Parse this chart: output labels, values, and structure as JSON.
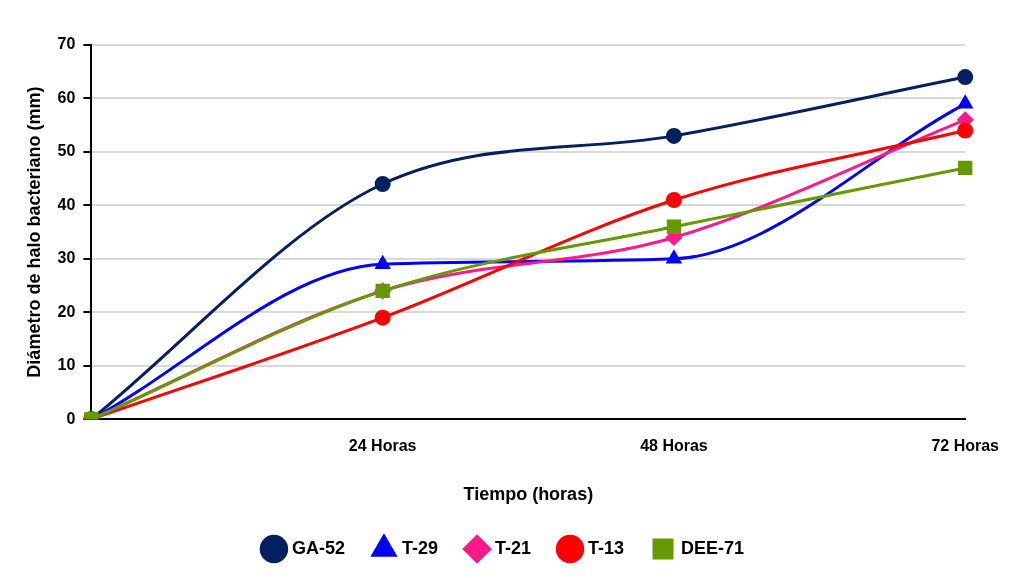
{
  "chart_data": {
    "type": "line",
    "xlabel": "Tiempo (horas)",
    "ylabel": "Diámetro de halo bacteriano (mm)",
    "categories": [
      null,
      "24 Horas",
      "48 Horas",
      "72 Horas"
    ],
    "series": [
      {
        "name": "GA-52",
        "color": "#002060",
        "marker": "circle",
        "values": [
          0,
          44,
          53,
          64
        ]
      },
      {
        "name": "T-29",
        "color": "#0000ff",
        "marker": "triangle",
        "values": [
          0,
          29,
          30,
          59
        ]
      },
      {
        "name": "T-21",
        "color": "#ff1a8c",
        "marker": "diamond",
        "values": [
          0,
          24,
          34,
          56
        ]
      },
      {
        "name": "T-13",
        "color": "#ff0000",
        "marker": "circle",
        "values": [
          0,
          19,
          41,
          54
        ]
      },
      {
        "name": "DEE-71",
        "color": "#669900",
        "marker": "square",
        "values": [
          0,
          24,
          36,
          47
        ]
      }
    ],
    "ylim": [
      0,
      70
    ],
    "yticks": [
      0,
      10,
      20,
      30,
      40,
      50,
      60,
      70
    ],
    "grid": "y",
    "legend": "bottom"
  }
}
